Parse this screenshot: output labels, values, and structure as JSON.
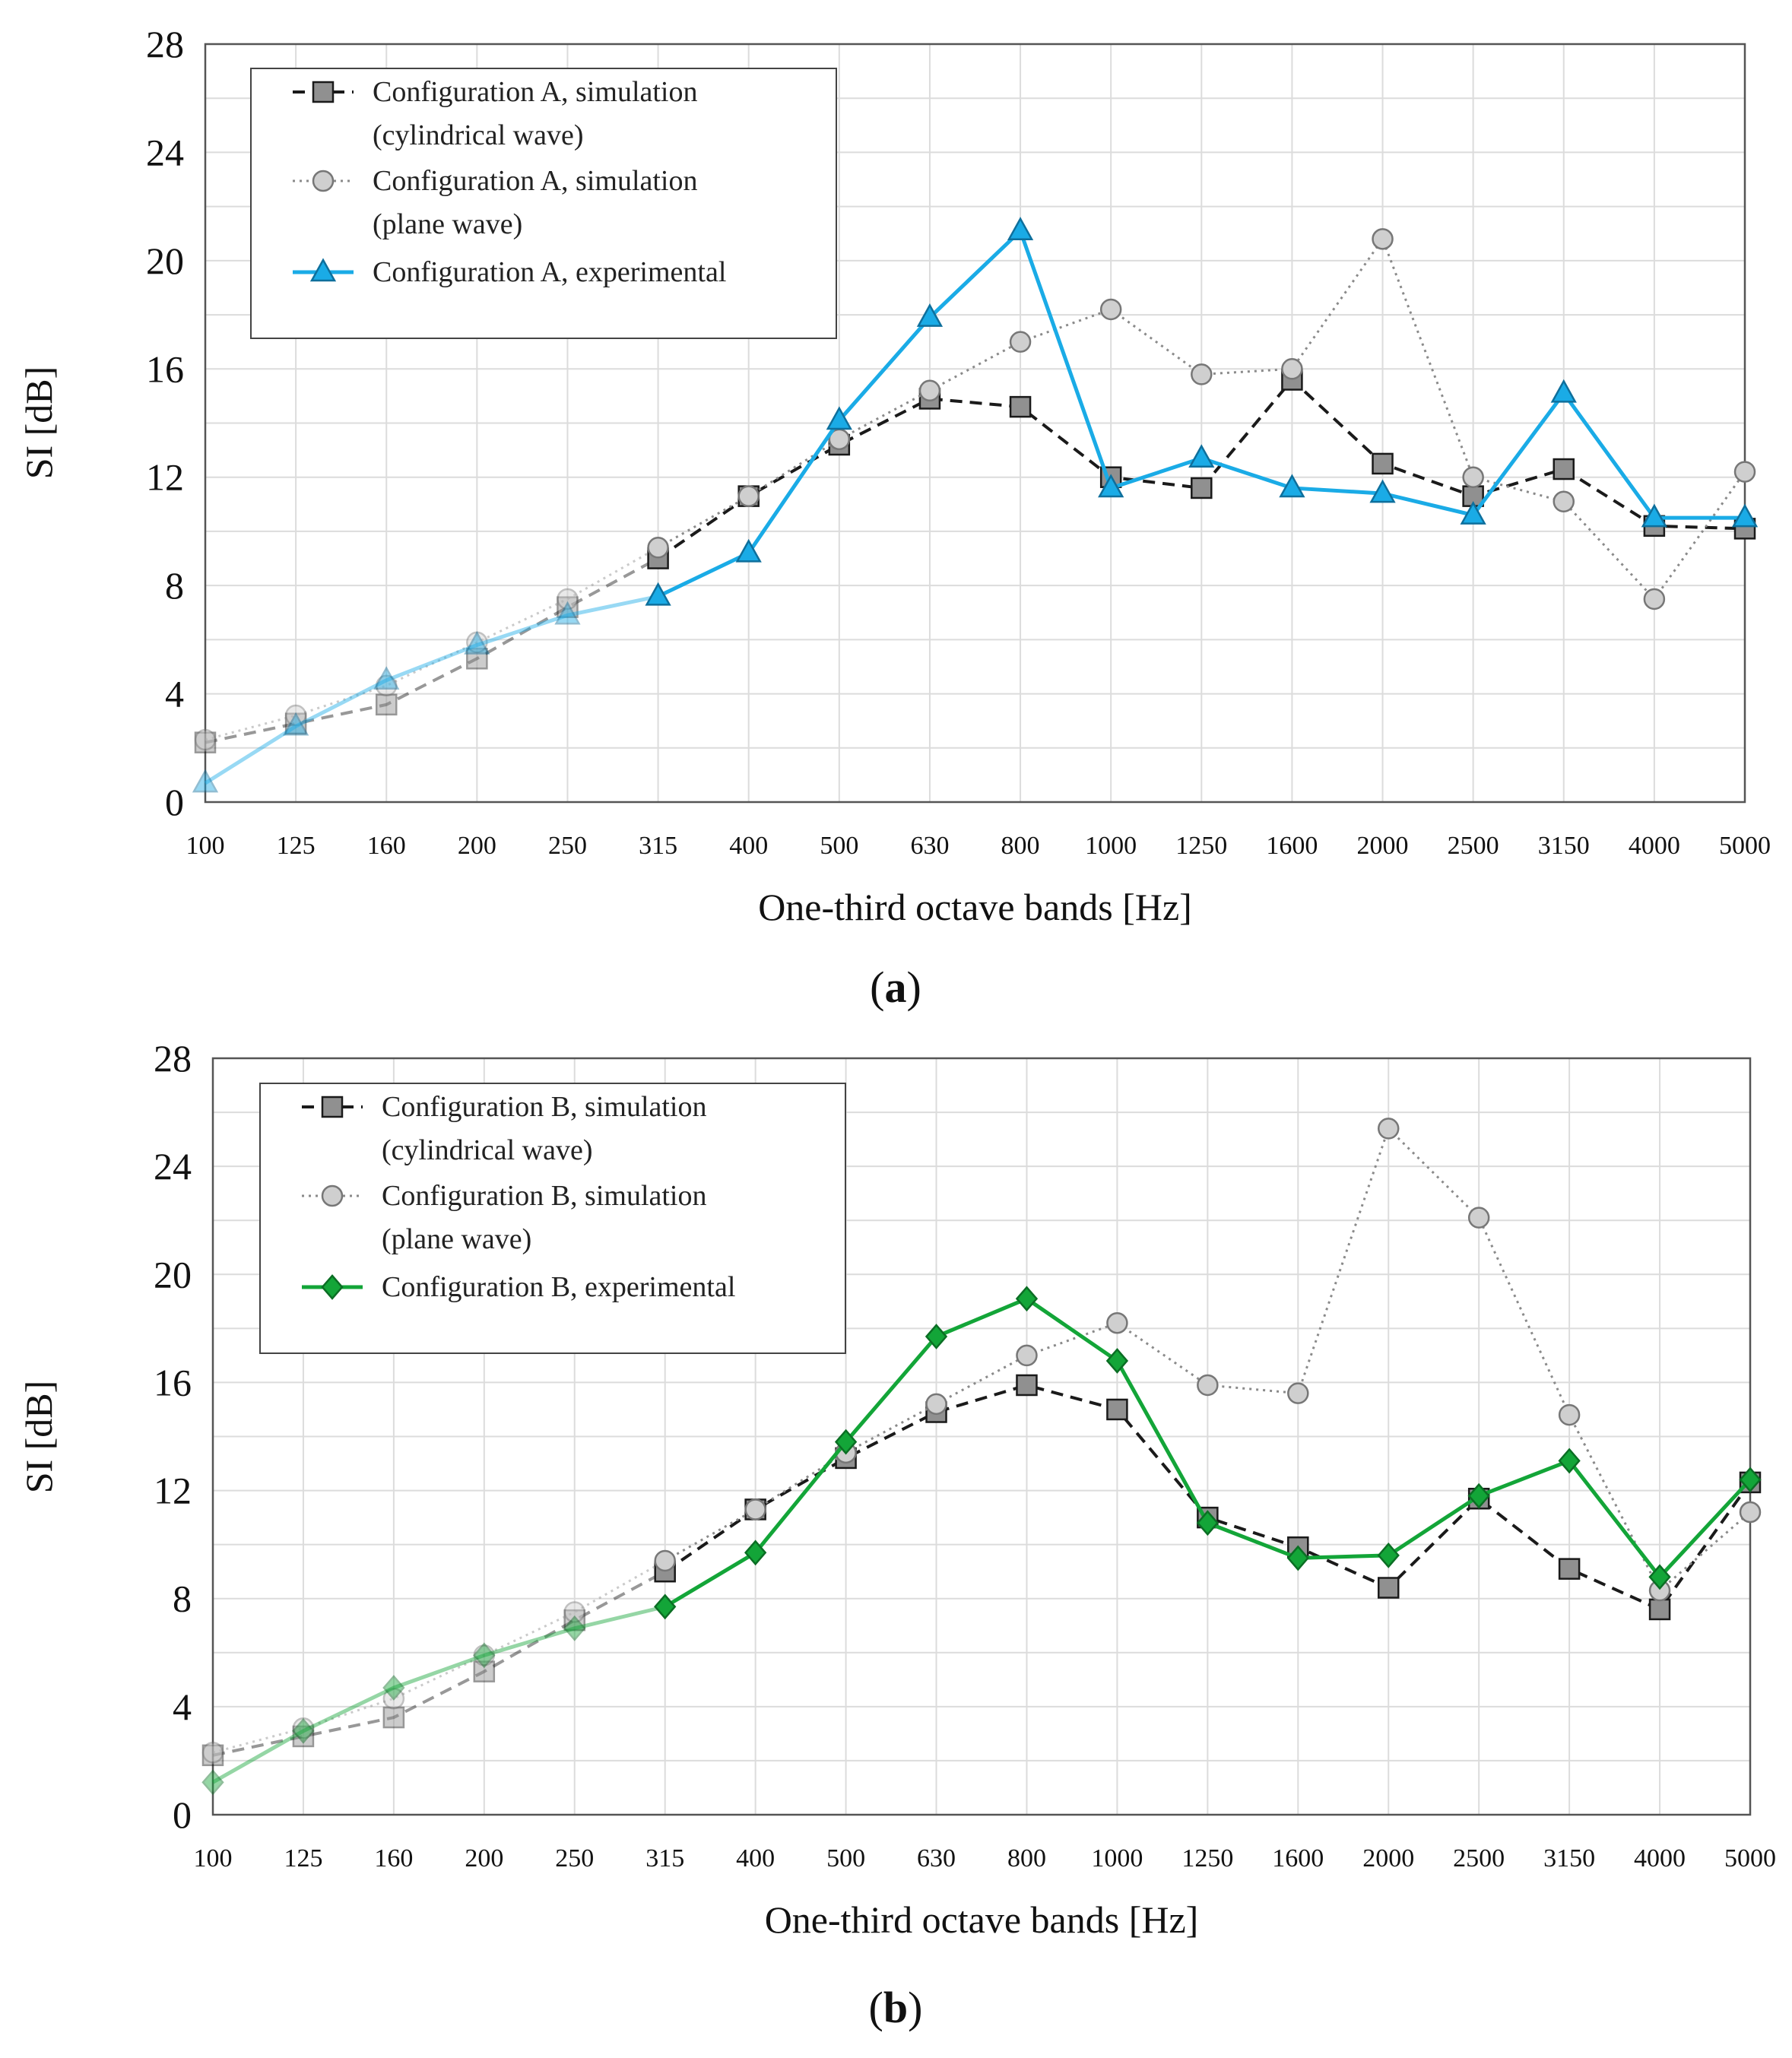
{
  "colors": {
    "sim_cyl": "#1a1a1a",
    "sim_cyl_marker": "#909090",
    "sim_plane": "#8a8a8a",
    "sim_plane_marker": "#cfcfcf",
    "exp_a": "#1aabe6",
    "exp_b": "#13a538"
  },
  "chart_data": [
    {
      "type": "line",
      "caption_letter": "a",
      "categories": [
        "100",
        "125",
        "160",
        "200",
        "250",
        "315",
        "400",
        "500",
        "630",
        "800",
        "1000",
        "1250",
        "1600",
        "2000",
        "2500",
        "3150",
        "4000",
        "5000"
      ],
      "xlabel": "One-third octave bands [Hz]",
      "ylabel": "SI [dB]",
      "ylim": [
        0,
        28
      ],
      "yticks": [
        "0",
        "4",
        "8",
        "12",
        "16",
        "20",
        "24",
        "28"
      ],
      "grid": true,
      "legend_position": "top-left",
      "faded_until_index": 5,
      "series": [
        {
          "name": "Configuration A, simulation",
          "name_line2": "(cylindrical wave)",
          "style": "dashed",
          "marker": "square",
          "values": [
            2.2,
            2.9,
            3.6,
            5.3,
            7.2,
            9.0,
            11.3,
            13.2,
            14.9,
            14.6,
            12.0,
            11.6,
            15.6,
            12.5,
            11.3,
            12.3,
            10.2,
            10.1
          ]
        },
        {
          "name": "Configuration A, simulation",
          "name_line2": "(plane wave)",
          "style": "dotted",
          "marker": "circle",
          "values": [
            2.3,
            3.2,
            4.3,
            5.9,
            7.5,
            9.4,
            11.3,
            13.4,
            15.2,
            17.0,
            18.2,
            15.8,
            16.0,
            20.8,
            12.0,
            11.1,
            7.5,
            12.2
          ]
        },
        {
          "name": "Configuration A, experimental",
          "name_line2": "",
          "style": "solid",
          "marker": "triangle",
          "values": [
            0.7,
            2.8,
            4.5,
            5.8,
            6.9,
            7.6,
            9.2,
            14.1,
            17.9,
            21.1,
            11.6,
            12.7,
            11.6,
            11.4,
            10.6,
            15.1,
            10.5,
            10.5
          ]
        }
      ]
    },
    {
      "type": "line",
      "caption_letter": "b",
      "categories": [
        "100",
        "125",
        "160",
        "200",
        "250",
        "315",
        "400",
        "500",
        "630",
        "800",
        "1000",
        "1250",
        "1600",
        "2000",
        "2500",
        "3150",
        "4000",
        "5000"
      ],
      "xlabel": "One-third octave bands [Hz]",
      "ylabel": "SI [dB]",
      "ylim": [
        0,
        28
      ],
      "yticks": [
        "0",
        "4",
        "8",
        "12",
        "16",
        "20",
        "24",
        "28"
      ],
      "grid": true,
      "legend_position": "top-left",
      "faded_until_index": 5,
      "series": [
        {
          "name": "Configuration B, simulation",
          "name_line2": "(cylindrical wave)",
          "style": "dashed",
          "marker": "square",
          "values": [
            2.2,
            2.9,
            3.6,
            5.3,
            7.2,
            9.0,
            11.3,
            13.2,
            14.9,
            15.9,
            15.0,
            11.0,
            9.9,
            8.4,
            11.7,
            9.1,
            7.6,
            12.3
          ]
        },
        {
          "name": "Configuration B, simulation",
          "name_line2": "(plane wave)",
          "style": "dotted",
          "marker": "circle",
          "values": [
            2.3,
            3.2,
            4.3,
            5.9,
            7.5,
            9.4,
            11.3,
            13.4,
            15.2,
            17.0,
            18.2,
            15.9,
            15.6,
            25.4,
            22.1,
            14.8,
            8.3,
            11.2
          ]
        },
        {
          "name": "Configuration B, experimental",
          "name_line2": "",
          "style": "solid",
          "marker": "diamond",
          "values": [
            1.2,
            3.1,
            4.7,
            5.9,
            6.9,
            7.7,
            9.7,
            13.8,
            17.7,
            19.1,
            16.8,
            10.8,
            9.5,
            9.6,
            11.8,
            13.1,
            8.8,
            12.4
          ]
        }
      ]
    }
  ]
}
